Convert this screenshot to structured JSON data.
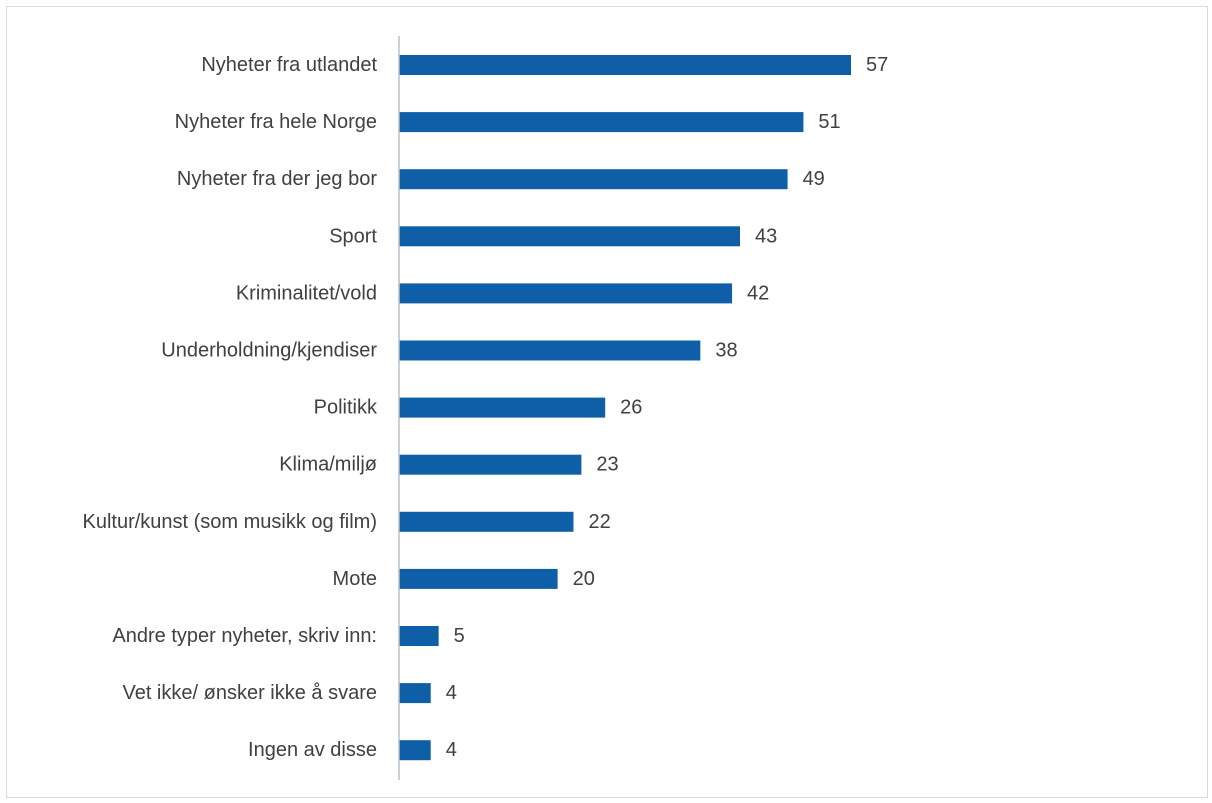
{
  "chart_data": {
    "type": "bar",
    "orientation": "horizontal",
    "categories": [
      "Nyheter fra utlandet",
      "Nyheter fra hele Norge",
      "Nyheter fra der jeg bor",
      "Sport",
      "Kriminalitet/vold",
      "Underholdning/kjendiser",
      "Politikk",
      "Klima/miljø",
      "Kultur/kunst (som musikk og film)",
      "Mote",
      "Andre typer nyheter, skriv inn:",
      "Vet ikke/ ønsker ikke å svare",
      "Ingen av disse"
    ],
    "values": [
      57,
      51,
      49,
      43,
      42,
      38,
      26,
      23,
      22,
      20,
      5,
      4,
      4
    ],
    "title": "",
    "xlabel": "",
    "ylabel": "",
    "xlim": [
      0,
      60
    ],
    "grid": false,
    "legend": "none",
    "bar_color": "#0f5ea8",
    "axis_color": "#bfbfbf",
    "text_color": "#404040"
  }
}
